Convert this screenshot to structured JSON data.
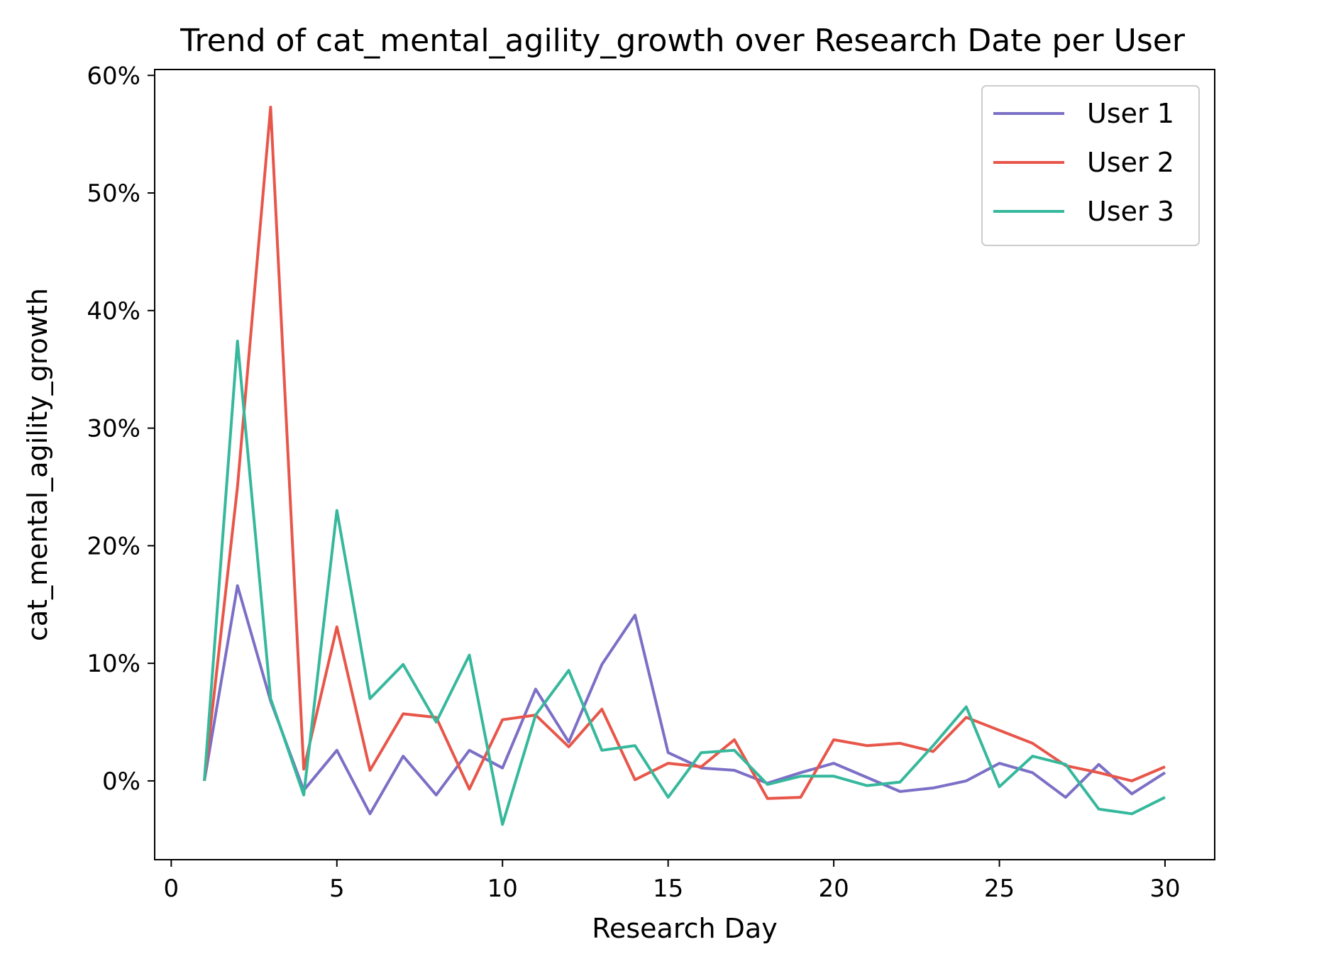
{
  "chart_data": {
    "type": "line",
    "title": "Trend of cat_mental_agility_growth over Research Date per User",
    "xlabel": "Research Day",
    "ylabel": "cat_mental_agility_growth",
    "xlim": [
      -0.5,
      31.5
    ],
    "ylim": [
      -6.7,
      60.5
    ],
    "xticks": [
      0,
      5,
      10,
      15,
      20,
      25,
      30
    ],
    "xtick_labels": [
      "0",
      "5",
      "10",
      "15",
      "20",
      "25",
      "30"
    ],
    "yticks": [
      0,
      10,
      20,
      30,
      40,
      50,
      60
    ],
    "ytick_labels": [
      "0%",
      "10%",
      "20%",
      "30%",
      "40%",
      "50%",
      "60%"
    ],
    "grid": false,
    "legend_position": "top-right",
    "x": [
      1,
      2,
      3,
      4,
      5,
      6,
      7,
      8,
      9,
      10,
      11,
      12,
      13,
      14,
      15,
      16,
      17,
      18,
      19,
      20,
      21,
      22,
      23,
      24,
      25,
      26,
      27,
      28,
      29,
      30
    ],
    "series": [
      {
        "name": "User 1",
        "color": "#7b6fc6",
        "values": [
          0.0,
          16.6,
          6.8,
          -0.8,
          2.6,
          -2.8,
          2.1,
          -1.2,
          2.6,
          1.1,
          7.8,
          3.3,
          9.9,
          14.1,
          2.4,
          1.1,
          0.9,
          -0.2,
          0.7,
          1.5,
          0.3,
          -0.9,
          -0.6,
          0.0,
          1.5,
          0.7,
          -1.4,
          1.4,
          -1.1,
          0.7
        ]
      },
      {
        "name": "User 2",
        "color": "#e8564a",
        "values": [
          0.0,
          25.0,
          57.3,
          1.0,
          13.1,
          0.9,
          5.7,
          5.4,
          -0.7,
          5.2,
          5.6,
          2.9,
          6.1,
          0.1,
          1.5,
          1.2,
          3.5,
          -1.5,
          -1.4,
          3.5,
          3.0,
          3.2,
          2.5,
          5.4,
          4.3,
          3.2,
          1.3,
          0.7,
          0.0,
          1.2
        ]
      },
      {
        "name": "User 3",
        "color": "#36b89c",
        "values": [
          0.0,
          37.4,
          7.0,
          -1.2,
          23.0,
          7.0,
          9.9,
          5.0,
          10.7,
          -3.7,
          5.6,
          9.4,
          2.6,
          3.0,
          -1.4,
          2.4,
          2.6,
          -0.3,
          0.4,
          0.4,
          -0.4,
          -0.1,
          3.0,
          6.3,
          -0.5,
          2.1,
          1.4,
          -2.4,
          -2.8,
          -1.4
        ]
      }
    ]
  }
}
